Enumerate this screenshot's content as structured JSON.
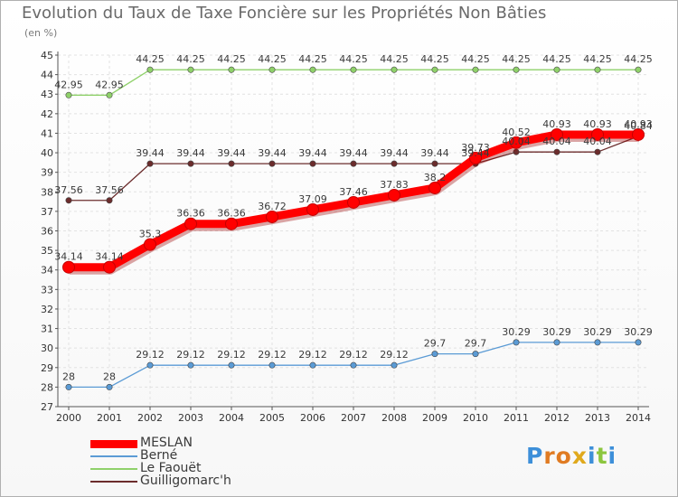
{
  "title": "Evolution du Taux de Taxe Foncière sur les Propriétés Non Bâties",
  "unit_label": "(en %)",
  "logo_text": "Proxiti",
  "chart_data": {
    "type": "line",
    "x": [
      "2000",
      "2001",
      "2002",
      "2003",
      "2004",
      "2005",
      "2006",
      "2007",
      "2008",
      "2009",
      "2010",
      "2011",
      "2012",
      "2013",
      "2014"
    ],
    "ylim": [
      27,
      45
    ],
    "yticks": [
      27,
      28,
      29,
      30,
      31,
      32,
      33,
      34,
      35,
      36,
      37,
      38,
      39,
      40,
      41,
      42,
      43,
      44,
      45
    ],
    "grid": true,
    "legend_position": "bottom-left",
    "series": [
      {
        "name": "MESLAN",
        "color": "#ff0000",
        "values": [
          34.14,
          34.14,
          35.3,
          36.36,
          36.36,
          36.72,
          37.09,
          37.46,
          37.83,
          38.2,
          39.73,
          40.52,
          40.93,
          40.93,
          40.93
        ],
        "labels": [
          "34.14",
          "34.14",
          "35.3",
          "36.36",
          "36.36",
          "36.72",
          "37.09",
          "37.46",
          "37.83",
          "38.2",
          "39.73",
          "40.52",
          "40.93",
          "40.93",
          "40.93"
        ]
      },
      {
        "name": "Berné",
        "color": "#5b9bd5",
        "values": [
          28,
          28,
          29.12,
          29.12,
          29.12,
          29.12,
          29.12,
          29.12,
          29.12,
          29.7,
          29.7,
          30.29,
          30.29,
          30.29,
          30.29
        ],
        "labels": [
          "28",
          "28",
          "29.12",
          "29.12",
          "29.12",
          "29.12",
          "29.12",
          "29.12",
          "29.12",
          "29.7",
          "29.7",
          "30.29",
          "30.29",
          "30.29",
          "30.29"
        ]
      },
      {
        "name": "Le Faouët",
        "color": "#8fd16a",
        "values": [
          42.95,
          42.95,
          44.25,
          44.25,
          44.25,
          44.25,
          44.25,
          44.25,
          44.25,
          44.25,
          44.25,
          44.25,
          44.25,
          44.25,
          44.25
        ],
        "labels": [
          "42.95",
          "42.95",
          "44.25",
          "44.25",
          "44.25",
          "44.25",
          "44.25",
          "44.25",
          "44.25",
          "44.25",
          "44.25",
          "44.25",
          "44.25",
          "44.25",
          "44.25"
        ]
      },
      {
        "name": "Guilligomarc'h",
        "color": "#6b2c2c",
        "values": [
          37.56,
          37.56,
          39.44,
          39.44,
          39.44,
          39.44,
          39.44,
          39.44,
          39.44,
          39.44,
          39.44,
          40.04,
          40.04,
          40.04,
          40.84
        ],
        "labels": [
          "37.56",
          "37.56",
          "39.44",
          "39.44",
          "39.44",
          "39.44",
          "39.44",
          "39.44",
          "39.44",
          "39.44",
          "39.44",
          "40.04",
          "40.04",
          "40.04",
          "40.84"
        ]
      }
    ]
  }
}
